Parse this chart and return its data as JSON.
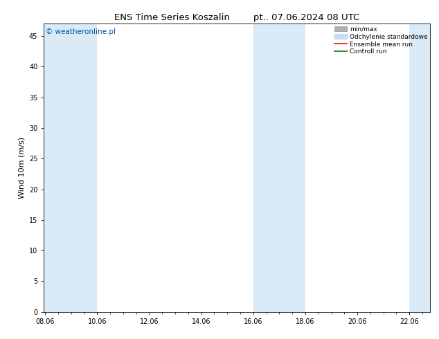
{
  "title": "ENS Time Series Koszalin        pt.. 07.06.2024 08 UTC",
  "ylabel": "Wind 10m (m/s)",
  "xlabel": "",
  "ylim": [
    0,
    47
  ],
  "yticks": [
    0,
    5,
    10,
    15,
    20,
    25,
    30,
    35,
    40,
    45
  ],
  "xtick_labels": [
    "08.06",
    "10.06",
    "12.06",
    "14.06",
    "16.06",
    "18.06",
    "20.06",
    "22.06"
  ],
  "xtick_positions": [
    0,
    2,
    4,
    6,
    8,
    10,
    12,
    14
  ],
  "xmin": -0.05,
  "xmax": 14.8,
  "shaded_bands": [
    {
      "x_start": -0.05,
      "x_end": 2.0,
      "color": "#daeaf7"
    },
    {
      "x_start": 8.0,
      "x_end": 10.0,
      "color": "#daeaf7"
    },
    {
      "x_start": 14.0,
      "x_end": 14.8,
      "color": "#daeaf7"
    }
  ],
  "watermark_text": "© weatheronline.pl",
  "watermark_color": "#0055aa",
  "watermark_fontsize": 7.5,
  "legend_entries": [
    {
      "label": "min/max",
      "color": "#aaaaaa",
      "type": "band"
    },
    {
      "label": "Odchylenie standardowe",
      "color": "#c8dff0",
      "type": "band"
    },
    {
      "label": "Ensemble mean run",
      "color": "red",
      "type": "line"
    },
    {
      "label": "Controll run",
      "color": "green",
      "type": "line"
    }
  ],
  "title_fontsize": 9.5,
  "axis_fontsize": 8,
  "tick_fontsize": 7,
  "legend_fontsize": 6.5,
  "background_color": "#ffffff",
  "plot_bg_color": "#ffffff"
}
